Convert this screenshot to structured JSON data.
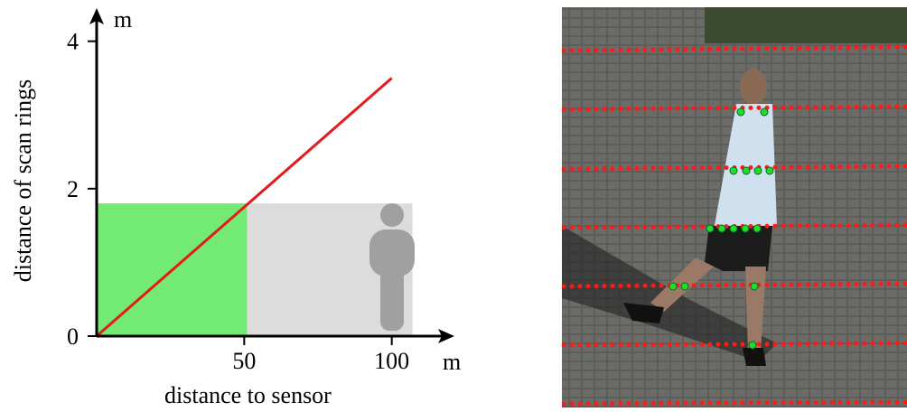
{
  "chart_data": {
    "type": "line",
    "xlabel": "distance to sensor",
    "ylabel": "distance of scan rings",
    "x_unit": "m",
    "y_unit": "m",
    "xlim": [
      0,
      120
    ],
    "ylim": [
      0,
      4.4
    ],
    "xticks": [
      50,
      100
    ],
    "yticks": [
      0,
      2,
      4
    ],
    "series": [
      {
        "color": "#e41a1c",
        "x": [
          0,
          100
        ],
        "values": [
          0,
          3.5
        ]
      }
    ],
    "regions": [
      {
        "color": "#73eb73",
        "x": [
          0,
          51
        ],
        "height": 1.8
      },
      {
        "color": "#dcdcdc",
        "x": [
          51,
          107
        ],
        "height": 1.8
      }
    ]
  }
}
